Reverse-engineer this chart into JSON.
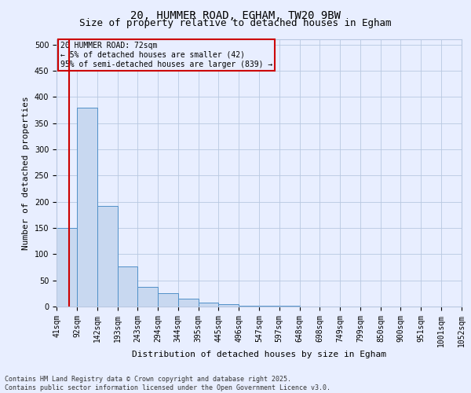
{
  "title": "20, HUMMER ROAD, EGHAM, TW20 9BW",
  "subtitle": "Size of property relative to detached houses in Egham",
  "xlabel": "Distribution of detached houses by size in Egham",
  "ylabel": "Number of detached properties",
  "bar_edges": [
    41,
    92,
    142,
    193,
    243,
    294,
    344,
    395,
    445,
    496,
    547,
    597,
    648,
    698,
    749,
    799,
    850,
    900,
    951,
    1001,
    1052
  ],
  "bar_heights": [
    150,
    380,
    192,
    77,
    37,
    25,
    15,
    7,
    5,
    2,
    1,
    1,
    0,
    0,
    0,
    0,
    0,
    0,
    0,
    0
  ],
  "bar_color": "#c8d8f0",
  "bar_edge_color": "#5090c8",
  "property_line_x": 72,
  "property_line_color": "#cc0000",
  "annotation_text": "20 HUMMER ROAD: 72sqm\n← 5% of detached houses are smaller (42)\n95% of semi-detached houses are larger (839) →",
  "annotation_box_color": "#cc0000",
  "ylim": [
    0,
    510
  ],
  "yticks": [
    0,
    50,
    100,
    150,
    200,
    250,
    300,
    350,
    400,
    450,
    500
  ],
  "background_color": "#e8eeff",
  "grid_color": "#b8c8e0",
  "footer_line1": "Contains HM Land Registry data © Crown copyright and database right 2025.",
  "footer_line2": "Contains public sector information licensed under the Open Government Licence v3.0.",
  "title_fontsize": 10,
  "subtitle_fontsize": 9,
  "xlabel_fontsize": 8,
  "ylabel_fontsize": 8,
  "tick_fontsize": 7,
  "annotation_fontsize": 7
}
